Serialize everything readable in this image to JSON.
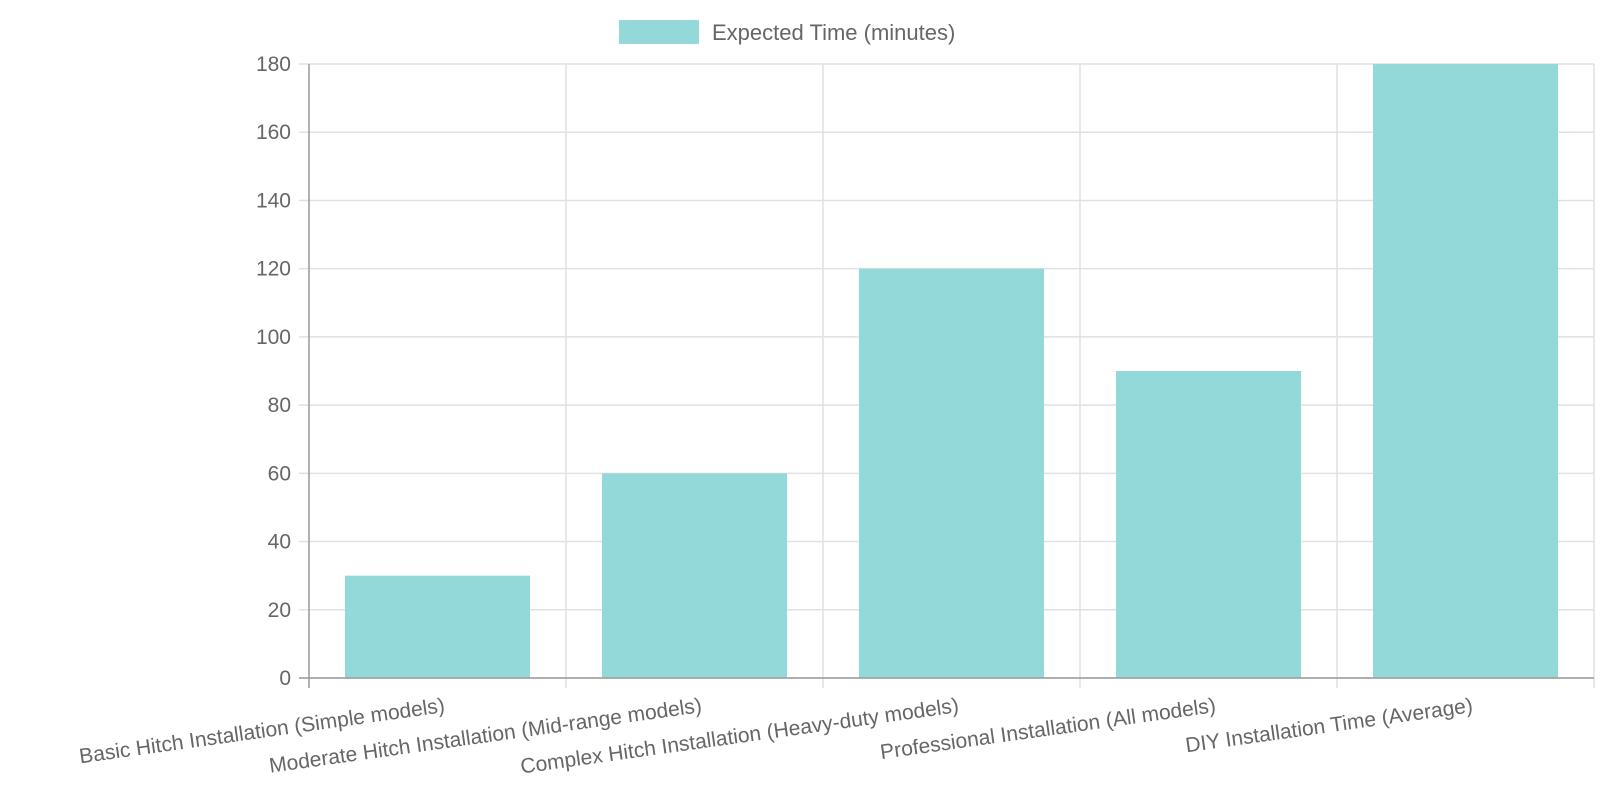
{
  "chart_data": {
    "type": "bar",
    "title": "",
    "xlabel": "",
    "ylabel": "",
    "categories": [
      "Basic Hitch Installation (Simple models)",
      "Moderate Hitch Installation (Mid-range models)",
      "Complex Hitch Installation (Heavy-duty models)",
      "Professional Installation (All models)",
      "DIY Installation Time (Average)"
    ],
    "series": [
      {
        "name": "Expected Time (minutes)",
        "values": [
          30,
          60,
          120,
          90,
          180
        ],
        "color": "#4BC0C0"
      }
    ],
    "ylim": [
      0,
      180
    ],
    "yticks": [
      0,
      20,
      40,
      60,
      80,
      100,
      120,
      140,
      160,
      180
    ],
    "grid": true,
    "legend_position": "top-center"
  },
  "colors": {
    "bar_fill": "#93d9d9",
    "grid": "#e1e1e1",
    "axis": "#999999",
    "text": "#666666"
  }
}
